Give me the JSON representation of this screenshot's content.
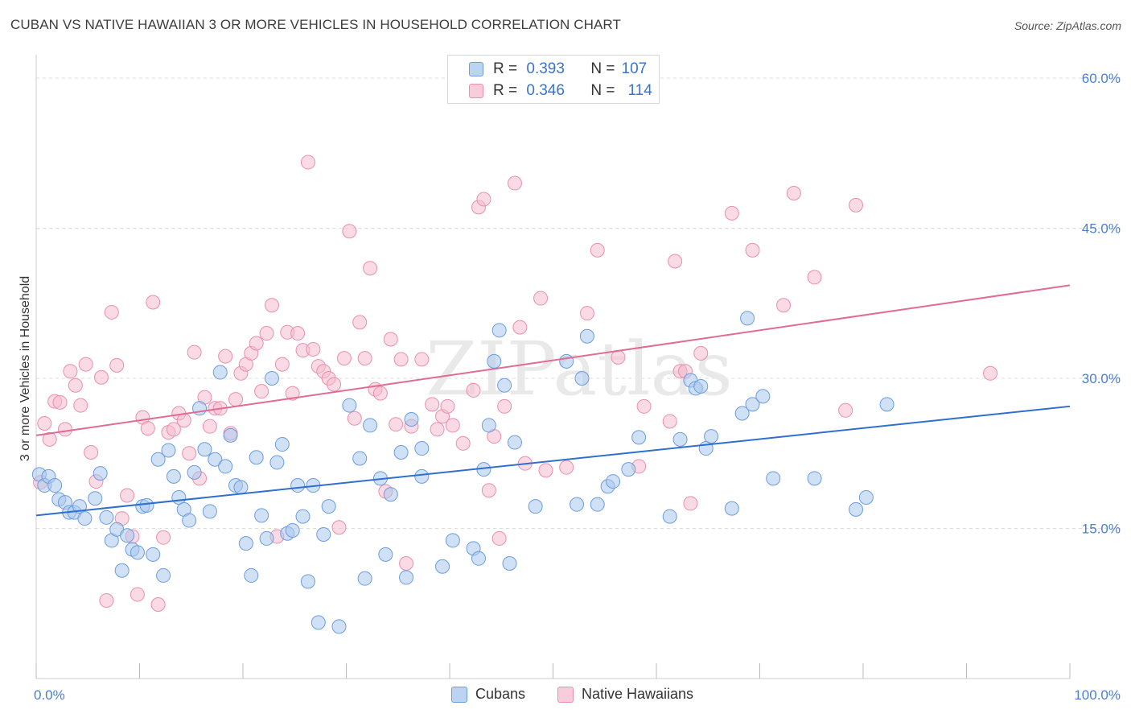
{
  "header": {
    "title": "CUBAN VS NATIVE HAWAIIAN 3 OR MORE VEHICLES IN HOUSEHOLD CORRELATION CHART",
    "source": "Source: ZipAtlas.com"
  },
  "watermark": "ZIPatlas",
  "legend_top": {
    "rows": [
      {
        "r_label": "R =",
        "r_value": "0.393",
        "n_label": "N =",
        "n_value": "107"
      },
      {
        "r_label": "R =",
        "r_value": "0.346",
        "n_label": "N =",
        "n_value": "114"
      }
    ]
  },
  "legend_bottom": {
    "items": [
      "Cubans",
      "Native Hawaiians"
    ]
  },
  "colors": {
    "cubans_fill": "#a9c8ef",
    "cubans_stroke": "#6b9ddf",
    "cubans_line": "#2f6fcf",
    "hawaiian_fill": "#f6bccd",
    "hawaiian_stroke": "#eb8fac",
    "hawaiian_line": "#e06b93",
    "tick_text": "#4a7fd0",
    "grid": "#dddddd"
  },
  "chart_data": {
    "type": "scatter",
    "title": "CUBAN VS NATIVE HAWAIIAN 3 OR MORE VEHICLES IN HOUSEHOLD CORRELATION CHART",
    "xlabel": "",
    "ylabel": "3 or more Vehicles in Household",
    "xlim": [
      0,
      100
    ],
    "ylim": [
      0,
      60
    ],
    "x_tick_labels": [
      "0.0%",
      "100.0%"
    ],
    "y_ticks": [
      15,
      30,
      45,
      60
    ],
    "y_tick_labels": [
      "15.0%",
      "30.0%",
      "45.0%",
      "60.0%"
    ],
    "grid": true,
    "legend": "top-center",
    "series": [
      {
        "name": "Cubans",
        "R": 0.393,
        "N": 107,
        "trend": {
          "x": [
            0,
            100
          ],
          "y": [
            16.3,
            27.2
          ]
        },
        "points": [
          [
            0.3,
            20.4
          ],
          [
            0.8,
            19.3
          ],
          [
            1.2,
            20.2
          ],
          [
            1.8,
            19.3
          ],
          [
            2.2,
            17.9
          ],
          [
            2.8,
            17.6
          ],
          [
            3.2,
            16.6
          ],
          [
            3.7,
            16.6
          ],
          [
            4.2,
            17.2
          ],
          [
            4.7,
            16.0
          ],
          [
            5.7,
            18.0
          ],
          [
            6.2,
            20.5
          ],
          [
            6.8,
            16.1
          ],
          [
            7.3,
            13.8
          ],
          [
            7.8,
            14.9
          ],
          [
            8.3,
            10.8
          ],
          [
            8.8,
            14.3
          ],
          [
            9.3,
            12.9
          ],
          [
            9.8,
            12.6
          ],
          [
            10.3,
            17.2
          ],
          [
            10.7,
            17.3
          ],
          [
            11.3,
            12.4
          ],
          [
            11.8,
            21.9
          ],
          [
            12.3,
            10.3
          ],
          [
            12.8,
            22.8
          ],
          [
            13.3,
            20.2
          ],
          [
            13.8,
            18.1
          ],
          [
            14.3,
            16.9
          ],
          [
            14.8,
            15.8
          ],
          [
            15.3,
            20.6
          ],
          [
            15.8,
            27.0
          ],
          [
            16.3,
            22.9
          ],
          [
            16.8,
            16.7
          ],
          [
            17.3,
            21.9
          ],
          [
            17.8,
            30.6
          ],
          [
            18.3,
            21.2
          ],
          [
            18.8,
            24.3
          ],
          [
            19.3,
            19.3
          ],
          [
            19.8,
            19.1
          ],
          [
            20.3,
            13.5
          ],
          [
            20.8,
            10.3
          ],
          [
            21.3,
            22.1
          ],
          [
            21.8,
            16.3
          ],
          [
            22.3,
            14.0
          ],
          [
            22.8,
            30.0
          ],
          [
            23.3,
            21.6
          ],
          [
            23.8,
            23.4
          ],
          [
            24.3,
            14.5
          ],
          [
            24.8,
            14.8
          ],
          [
            25.3,
            19.3
          ],
          [
            25.8,
            16.2
          ],
          [
            26.3,
            9.7
          ],
          [
            26.8,
            19.3
          ],
          [
            27.3,
            5.6
          ],
          [
            27.8,
            14.4
          ],
          [
            28.3,
            17.2
          ],
          [
            29.3,
            5.2
          ],
          [
            30.3,
            27.3
          ],
          [
            31.3,
            22.0
          ],
          [
            31.8,
            10.0
          ],
          [
            32.3,
            25.3
          ],
          [
            33.3,
            20.0
          ],
          [
            33.8,
            12.4
          ],
          [
            34.3,
            18.4
          ],
          [
            35.3,
            22.6
          ],
          [
            35.8,
            10.1
          ],
          [
            36.3,
            25.9
          ],
          [
            37.3,
            20.2
          ],
          [
            37.3,
            23.0
          ],
          [
            39.3,
            11.2
          ],
          [
            40.3,
            13.8
          ],
          [
            42.3,
            13.0
          ],
          [
            42.8,
            12.0
          ],
          [
            43.3,
            20.9
          ],
          [
            43.8,
            25.3
          ],
          [
            44.3,
            31.7
          ],
          [
            44.8,
            34.8
          ],
          [
            45.3,
            29.3
          ],
          [
            45.8,
            11.5
          ],
          [
            46.3,
            23.6
          ],
          [
            48.3,
            17.2
          ],
          [
            51.3,
            31.7
          ],
          [
            52.3,
            17.4
          ],
          [
            52.8,
            30.0
          ],
          [
            53.3,
            34.2
          ],
          [
            54.3,
            17.4
          ],
          [
            55.3,
            19.2
          ],
          [
            55.8,
            19.7
          ],
          [
            57.3,
            20.9
          ],
          [
            58.3,
            24.1
          ],
          [
            61.3,
            16.2
          ],
          [
            62.3,
            23.9
          ],
          [
            63.3,
            29.8
          ],
          [
            63.8,
            29.0
          ],
          [
            64.3,
            29.2
          ],
          [
            64.8,
            23.0
          ],
          [
            65.3,
            24.2
          ],
          [
            67.3,
            17.0
          ],
          [
            68.3,
            26.5
          ],
          [
            68.8,
            36.0
          ],
          [
            69.3,
            27.4
          ],
          [
            70.3,
            28.2
          ],
          [
            71.3,
            20.0
          ],
          [
            75.3,
            20.0
          ],
          [
            79.3,
            16.9
          ],
          [
            80.3,
            18.1
          ],
          [
            82.3,
            27.4
          ]
        ]
      },
      {
        "name": "Native Hawaiians",
        "R": 0.346,
        "N": 114,
        "trend": {
          "x": [
            0,
            100
          ],
          "y": [
            24.3,
            39.3
          ]
        },
        "points": [
          [
            0.4,
            19.6
          ],
          [
            0.8,
            25.5
          ],
          [
            1.3,
            23.9
          ],
          [
            1.8,
            27.7
          ],
          [
            2.3,
            27.6
          ],
          [
            2.8,
            24.9
          ],
          [
            3.3,
            30.7
          ],
          [
            3.8,
            29.3
          ],
          [
            4.3,
            27.3
          ],
          [
            4.8,
            31.4
          ],
          [
            5.3,
            22.6
          ],
          [
            5.8,
            19.7
          ],
          [
            6.3,
            30.1
          ],
          [
            6.8,
            7.8
          ],
          [
            7.3,
            36.6
          ],
          [
            7.8,
            31.3
          ],
          [
            8.3,
            16.0
          ],
          [
            8.8,
            18.3
          ],
          [
            9.3,
            14.2
          ],
          [
            9.8,
            8.4
          ],
          [
            10.3,
            26.1
          ],
          [
            10.8,
            25.0
          ],
          [
            11.3,
            37.6
          ],
          [
            11.8,
            7.4
          ],
          [
            12.3,
            14.1
          ],
          [
            12.8,
            24.6
          ],
          [
            13.3,
            24.9
          ],
          [
            13.8,
            26.5
          ],
          [
            14.3,
            25.8
          ],
          [
            14.8,
            22.5
          ],
          [
            15.3,
            32.6
          ],
          [
            15.8,
            20.0
          ],
          [
            16.3,
            28.1
          ],
          [
            16.8,
            25.2
          ],
          [
            17.3,
            27.0
          ],
          [
            17.8,
            27.0
          ],
          [
            18.3,
            32.2
          ],
          [
            18.8,
            24.5
          ],
          [
            19.3,
            27.9
          ],
          [
            19.8,
            30.5
          ],
          [
            20.3,
            31.4
          ],
          [
            20.8,
            32.5
          ],
          [
            21.3,
            33.5
          ],
          [
            21.8,
            28.7
          ],
          [
            22.3,
            34.5
          ],
          [
            22.8,
            37.3
          ],
          [
            23.3,
            14.2
          ],
          [
            23.8,
            31.4
          ],
          [
            24.3,
            34.6
          ],
          [
            24.8,
            28.5
          ],
          [
            25.3,
            34.5
          ],
          [
            25.8,
            32.8
          ],
          [
            26.3,
            51.6
          ],
          [
            26.8,
            32.9
          ],
          [
            27.3,
            31.2
          ],
          [
            27.8,
            30.7
          ],
          [
            28.3,
            30.0
          ],
          [
            28.8,
            29.4
          ],
          [
            29.3,
            15.1
          ],
          [
            29.8,
            32.0
          ],
          [
            30.3,
            44.7
          ],
          [
            30.8,
            26.0
          ],
          [
            31.3,
            35.6
          ],
          [
            31.8,
            32.0
          ],
          [
            32.3,
            41.0
          ],
          [
            32.8,
            28.9
          ],
          [
            33.3,
            28.5
          ],
          [
            33.8,
            18.7
          ],
          [
            34.3,
            33.9
          ],
          [
            34.8,
            25.4
          ],
          [
            35.3,
            31.9
          ],
          [
            35.8,
            11.5
          ],
          [
            36.3,
            25.2
          ],
          [
            37.3,
            31.9
          ],
          [
            38.3,
            27.4
          ],
          [
            38.8,
            24.9
          ],
          [
            39.3,
            26.2
          ],
          [
            39.8,
            27.2
          ],
          [
            40.3,
            25.3
          ],
          [
            41.3,
            23.5
          ],
          [
            42.3,
            28.8
          ],
          [
            42.8,
            47.1
          ],
          [
            43.3,
            47.9
          ],
          [
            43.8,
            18.8
          ],
          [
            44.3,
            24.2
          ],
          [
            44.8,
            14.0
          ],
          [
            45.3,
            27.2
          ],
          [
            46.3,
            49.5
          ],
          [
            46.8,
            35.1
          ],
          [
            47.3,
            21.5
          ],
          [
            48.8,
            38.0
          ],
          [
            49.3,
            20.8
          ],
          [
            51.3,
            21.1
          ],
          [
            53.3,
            36.5
          ],
          [
            54.3,
            42.8
          ],
          [
            56.3,
            32.1
          ],
          [
            58.3,
            21.2
          ],
          [
            58.8,
            27.2
          ],
          [
            61.3,
            25.7
          ],
          [
            61.8,
            41.7
          ],
          [
            62.3,
            30.7
          ],
          [
            62.8,
            30.7
          ],
          [
            63.3,
            17.5
          ],
          [
            64.3,
            32.5
          ],
          [
            67.3,
            46.5
          ],
          [
            69.3,
            42.8
          ],
          [
            72.3,
            37.3
          ],
          [
            73.3,
            48.5
          ],
          [
            75.3,
            40.1
          ],
          [
            78.3,
            26.8
          ],
          [
            79.3,
            47.3
          ],
          [
            92.3,
            30.5
          ]
        ]
      }
    ]
  }
}
